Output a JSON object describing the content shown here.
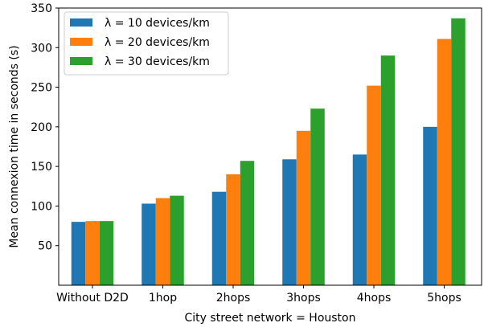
{
  "chart_data": {
    "type": "bar",
    "title": "",
    "xlabel": "City street network = Houston",
    "ylabel": "Mean connexion time in seconds (s)",
    "categories": [
      "Without D2D",
      "1hop",
      "2hops",
      "3hops",
      "4hops",
      "5hops"
    ],
    "ylim": [
      0,
      350
    ],
    "yticks": [
      50,
      100,
      150,
      200,
      250,
      300,
      350
    ],
    "grid": false,
    "legend_position": "top-left",
    "series": [
      {
        "name": "λ = 10 devices/km",
        "color": "#1f77b4",
        "values": [
          80,
          103,
          118,
          159,
          165,
          200
        ]
      },
      {
        "name": "λ = 20 devices/km",
        "color": "#ff7f0e",
        "values": [
          81,
          110,
          140,
          195,
          252,
          311
        ]
      },
      {
        "name": "λ = 30 devices/km",
        "color": "#2ca02c",
        "values": [
          81,
          113,
          157,
          223,
          290,
          337
        ]
      }
    ]
  }
}
